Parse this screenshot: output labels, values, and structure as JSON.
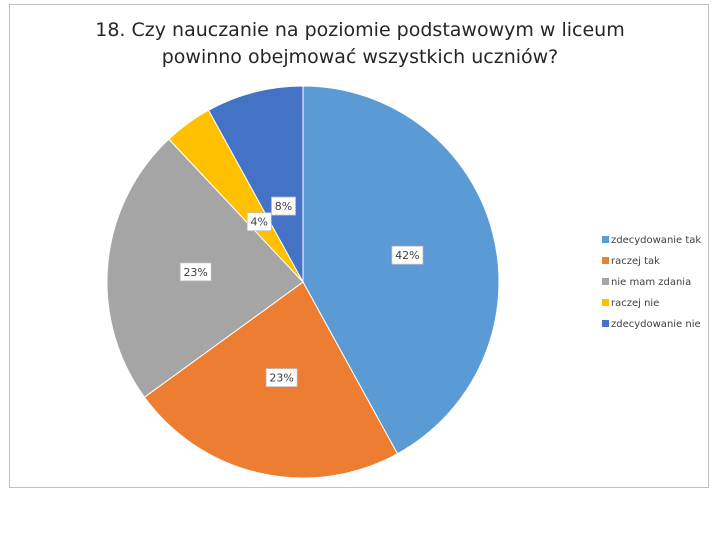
{
  "chart_data": {
    "type": "pie",
    "title_lines": [
      "18. Czy nauczanie na poziomie podstawowym w liceum",
      "powinno obejmować wszystkich uczniów?"
    ],
    "categories": [
      "zdecydowanie tak",
      "raczej tak",
      "nie mam zdania",
      "raczej nie",
      "zdecydowanie nie"
    ],
    "values": [
      42,
      23,
      23,
      4,
      8
    ],
    "labels": [
      "42%",
      "23%",
      "23%",
      "4%",
      "8%"
    ],
    "colors": [
      "#5b9bd5",
      "#ed7d31",
      "#a5a5a5",
      "#ffc000",
      "#4472c4"
    ],
    "legend_position": "right"
  }
}
